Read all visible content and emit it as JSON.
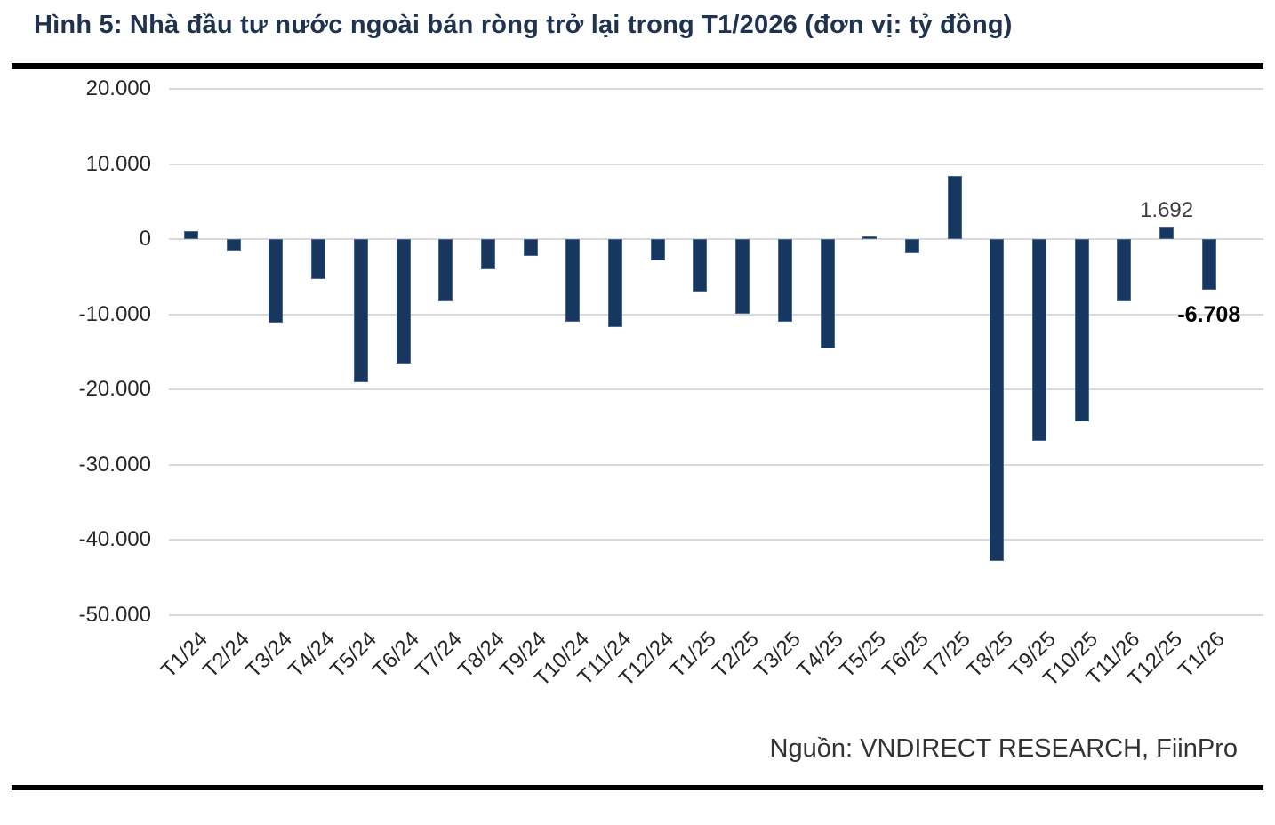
{
  "figure": {
    "title": "Hình 5: Nhà đầu tư nước ngoài bán ròng trở lại trong T1/2026 (đơn vị: tỷ đồng)",
    "source": "Nguồn: VNDIRECT RESEARCH, FiinPro"
  },
  "chart_data": {
    "type": "bar",
    "unit": "tỷ đồng",
    "title": "Nhà đầu tư nước ngoài bán ròng trở lại trong T1/2026",
    "categories": [
      "T1/24",
      "T2/24",
      "T3/24",
      "T4/24",
      "T5/24",
      "T6/24",
      "T7/24",
      "T8/24",
      "T9/24",
      "T10/24",
      "T11/24",
      "T12/24",
      "T1/25",
      "T2/25",
      "T3/25",
      "T4/25",
      "T5/25",
      "T6/25",
      "T7/25",
      "T8/25",
      "T9/25",
      "T10/25",
      "T11/26",
      "T12/25",
      "T1/26"
    ],
    "values": [
      1100,
      -1500,
      -11100,
      -5300,
      -19000,
      -16600,
      -8300,
      -4000,
      -2200,
      -11000,
      -11700,
      -2800,
      -7000,
      -9900,
      -11000,
      -14500,
      300,
      -1900,
      8400,
      -42800,
      -26900,
      -24300,
      -8300,
      1692,
      -6708
    ],
    "data_labels": [
      {
        "category": "T12/25",
        "text": "1.692",
        "bold": false
      },
      {
        "category": "T1/26",
        "text": "-6.708",
        "bold": true
      }
    ],
    "ylim": [
      -50000,
      20000
    ],
    "ytick_values": [
      20000,
      10000,
      0,
      -10000,
      -20000,
      -30000,
      -40000,
      -50000
    ],
    "ytick_labels": [
      "20.000",
      "10.000",
      "0",
      "-10.000",
      "-20.000",
      "-30.000",
      "-40.000",
      "-50.000"
    ],
    "xlabel": "",
    "ylabel": "",
    "grid": true,
    "legend": "none",
    "bar_color": "#17375e",
    "gridline_color": "#d9d9d9"
  }
}
